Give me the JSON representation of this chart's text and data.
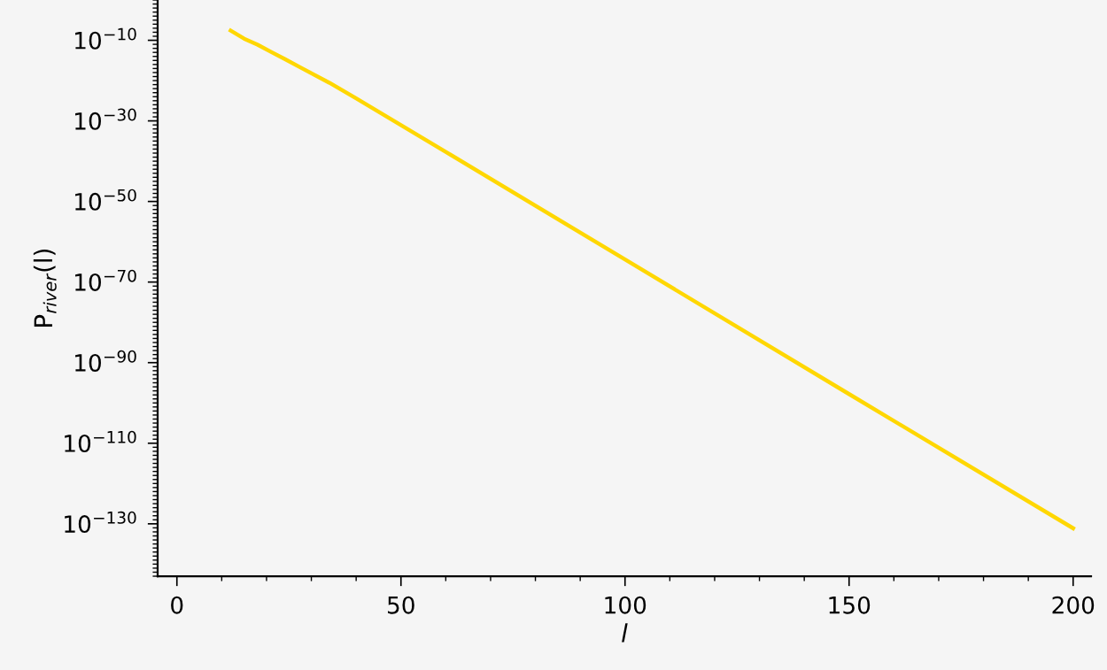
{
  "chart_data": {
    "type": "line",
    "xlabel": "l",
    "ylabel": "P$_{river}$(l)",
    "x": [
      12,
      15,
      18,
      21,
      24,
      28,
      34,
      40,
      60,
      100,
      150,
      200
    ],
    "series": [
      {
        "color": "#ffd700",
        "values": [
          2.5e-08,
          2.5e-10,
          8e-12,
          1.3e-13,
          2.5e-15,
          1e-17,
          3e-21,
          4e-25,
          2e-38,
          4e-65,
          1.6e-98,
          8e-132
        ]
      }
    ],
    "log": "y",
    "grid": false,
    "legend": false,
    "marker": "none",
    "line_style": "solid",
    "xlim": [
      -4.3,
      204
    ],
    "xticks": [
      0,
      50,
      100,
      150,
      200
    ],
    "ylim": [
      1e-143,
      1
    ],
    "yticks": [
      {
        "value": 1e-10,
        "label": "10$^{−10}$"
      },
      {
        "value": 1e-30,
        "label": "10$^{−30}$"
      },
      {
        "value": 1e-50,
        "label": "10$^{−50}$"
      },
      {
        "value": 1e-70,
        "label": "10$^{−70}$"
      },
      {
        "value": 1e-90,
        "label": "10$^{−90}$"
      },
      {
        "value": 1e-110,
        "label": "10$^{−110}$"
      },
      {
        "value": 1e-130,
        "label": "10$^{−130}$"
      }
    ]
  }
}
